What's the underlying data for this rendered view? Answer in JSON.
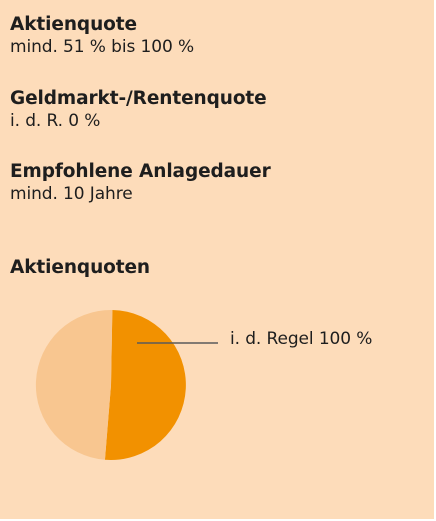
{
  "info": {
    "aktienquote": {
      "heading": "Aktienquote",
      "value": "mind. 51 % bis 100 %"
    },
    "rentenquote": {
      "heading": "Geldmarkt-/Rentenquote",
      "value": "i. d. R. 0 %"
    },
    "anlagedauer": {
      "heading": "Empfohlene Anlagedauer",
      "value": "mind. 10 Jahre"
    }
  },
  "colors": {
    "background": "#fddcba",
    "slice_main": "#f29100",
    "slice_rest": "#f8c690",
    "leader": "#5a5a5a"
  },
  "chart_data": {
    "type": "pie",
    "title": "Aktienquoten",
    "slices": [
      {
        "value": 51
      },
      {
        "value": 49
      }
    ],
    "annotation": "i. d. Regel 100 %"
  }
}
